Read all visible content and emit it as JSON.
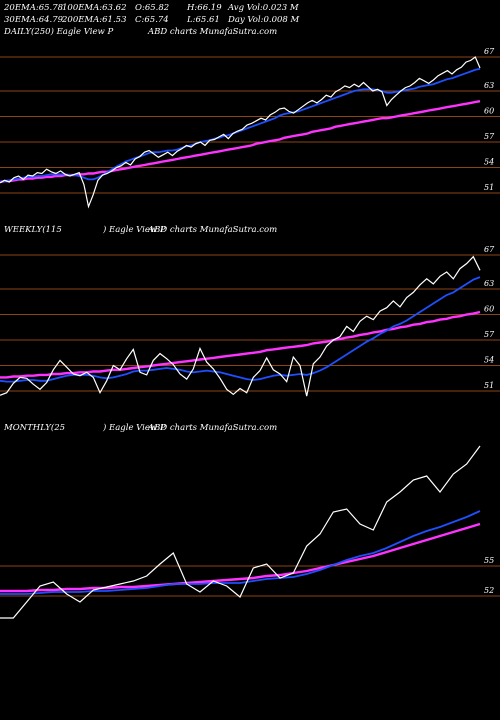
{
  "header": {
    "row1": [
      {
        "label": "20EMA:",
        "value": "65.78"
      },
      {
        "label": "100EMA:",
        "value": "63.62"
      },
      {
        "label": "O:",
        "value": "65.82"
      },
      {
        "label": "H:",
        "value": "66.19"
      },
      {
        "label": "Avg Vol:",
        "value": "0.023 M"
      }
    ],
    "row2": [
      {
        "label": "30EMA:",
        "value": "64.79"
      },
      {
        "label": "200EMA:",
        "value": "61.53"
      },
      {
        "label": "C:",
        "value": "65.74"
      },
      {
        "label": "L:",
        "value": "65.61"
      },
      {
        "label": "Day Vol:",
        "value": "0.008  M"
      }
    ]
  },
  "panels": [
    {
      "id": "daily",
      "title_left": "DAILY(250) Eagle   View  P",
      "title_right": "ABD charts MunafaSutra.com",
      "ticks": [
        "67",
        "63",
        "60",
        "57",
        "54",
        "51"
      ]
    },
    {
      "id": "weekly",
      "title_left": "WEEKLY(115",
      "title_mid": ") Eagle   View  P",
      "title_right": "ABD charts MunafaSutra.com",
      "ticks": [
        "67",
        "63",
        "60",
        "57",
        "54",
        "51"
      ]
    },
    {
      "id": "monthly",
      "title_left": "MONTHLY(25",
      "title_mid": ") Eagle   View  P",
      "title_right": "ABD charts MunafaSutra.com",
      "ticks": [
        "55",
        "52"
      ]
    }
  ],
  "colors": {
    "background": "#000000",
    "price": "#ffffff",
    "ema_fast": "#1e50ff",
    "ema_slow": "#ff33ff",
    "ema_mid": "#ffb070",
    "grid": "#8b4513"
  },
  "chart_data": [
    {
      "type": "line",
      "name": "daily",
      "ylim": [
        49,
        69
      ],
      "y_ticks": [
        67,
        63,
        60,
        57,
        54,
        51
      ],
      "series": [
        {
          "name": "price",
          "values": [
            52.2,
            52.5,
            52.3,
            52.8,
            53.0,
            52.6,
            53.1,
            53.0,
            53.4,
            53.3,
            53.8,
            53.5,
            53.3,
            53.6,
            53.2,
            53.0,
            53.2,
            53.4,
            52.0,
            49.4,
            50.8,
            52.5,
            53.1,
            53.3,
            53.6,
            54.0,
            54.2,
            54.6,
            54.3,
            55.0,
            55.3,
            55.8,
            56.0,
            55.6,
            55.2,
            55.5,
            55.8,
            55.4,
            55.9,
            56.2,
            56.6,
            56.4,
            56.8,
            57.0,
            56.6,
            57.2,
            57.3,
            57.6,
            57.9,
            57.4,
            58.0,
            58.3,
            58.5,
            59.0,
            59.2,
            59.5,
            59.8,
            59.6,
            60.2,
            60.5,
            60.9,
            61.0,
            60.6,
            60.4,
            60.8,
            61.2,
            61.6,
            61.9,
            61.6,
            62.0,
            62.5,
            62.3,
            62.9,
            63.2,
            63.6,
            63.4,
            63.8,
            63.5,
            64.0,
            63.5,
            63.0,
            63.2,
            62.9,
            61.3,
            62.0,
            62.5,
            63.0,
            63.4,
            63.6,
            64.0,
            64.5,
            64.2,
            63.9,
            64.3,
            64.8,
            65.1,
            65.4,
            65.0,
            65.5,
            65.8,
            66.4,
            66.6,
            67.0,
            65.7
          ]
        },
        {
          "name": "ema_fast",
          "values": [
            52.3,
            52.4,
            52.5,
            52.6,
            52.7,
            52.8,
            52.9,
            52.9,
            53.0,
            53.0,
            53.1,
            53.2,
            53.2,
            53.2,
            53.2,
            53.1,
            53.1,
            53.0,
            52.8,
            52.6,
            52.6,
            52.8,
            53.1,
            53.4,
            53.8,
            54.1,
            54.4,
            54.7,
            54.9,
            55.1,
            55.3,
            55.5,
            55.7,
            55.8,
            55.8,
            55.9,
            56.0,
            56.0,
            56.1,
            56.3,
            56.5,
            56.6,
            56.8,
            57.0,
            57.1,
            57.2,
            57.4,
            57.5,
            57.7,
            57.8,
            58.0,
            58.2,
            58.4,
            58.6,
            58.8,
            59.0,
            59.2,
            59.4,
            59.6,
            59.8,
            60.1,
            60.3,
            60.4,
            60.5,
            60.6,
            60.8,
            61.0,
            61.2,
            61.4,
            61.6,
            61.8,
            62.0,
            62.2,
            62.4,
            62.6,
            62.8,
            63.0,
            63.1,
            63.2,
            63.2,
            63.2,
            63.1,
            63.0,
            62.8,
            62.8,
            62.9,
            63.0,
            63.1,
            63.2,
            63.3,
            63.5,
            63.6,
            63.7,
            63.8,
            64.0,
            64.2,
            64.4,
            64.5,
            64.7,
            64.9,
            65.1,
            65.3,
            65.5,
            65.6
          ]
        },
        {
          "name": "ema_slow",
          "values": [
            52.3,
            52.4,
            52.4,
            52.5,
            52.6,
            52.6,
            52.7,
            52.7,
            52.8,
            52.8,
            52.9,
            52.9,
            53.0,
            53.0,
            53.1,
            53.1,
            53.1,
            53.2,
            53.2,
            53.3,
            53.3,
            53.4,
            53.5,
            53.5,
            53.6,
            53.7,
            53.8,
            53.9,
            54.0,
            54.1,
            54.2,
            54.3,
            54.4,
            54.5,
            54.6,
            54.7,
            54.8,
            54.9,
            55.0,
            55.1,
            55.2,
            55.3,
            55.4,
            55.5,
            55.6,
            55.7,
            55.8,
            55.9,
            56.0,
            56.1,
            56.2,
            56.3,
            56.4,
            56.5,
            56.6,
            56.8,
            56.9,
            57.0,
            57.1,
            57.2,
            57.3,
            57.5,
            57.6,
            57.7,
            57.8,
            57.9,
            58.0,
            58.2,
            58.3,
            58.4,
            58.5,
            58.6,
            58.8,
            58.9,
            59.0,
            59.1,
            59.2,
            59.3,
            59.4,
            59.5,
            59.6,
            59.7,
            59.8,
            59.8,
            59.9,
            60.0,
            60.1,
            60.2,
            60.3,
            60.4,
            60.5,
            60.6,
            60.7,
            60.8,
            60.9,
            61.0,
            61.1,
            61.2,
            61.3,
            61.4,
            61.5,
            61.6,
            61.7,
            61.8
          ]
        }
      ]
    },
    {
      "type": "line",
      "name": "weekly",
      "ylim": [
        49,
        69
      ],
      "y_ticks": [
        67,
        63,
        60,
        57,
        54,
        51
      ],
      "series": [
        {
          "name": "price",
          "values": [
            50.5,
            50.8,
            51.9,
            52.6,
            52.5,
            51.8,
            51.2,
            52.0,
            53.5,
            54.6,
            53.8,
            53.0,
            52.8,
            53.2,
            52.6,
            50.8,
            52.2,
            54.0,
            53.5,
            54.8,
            55.9,
            53.2,
            52.9,
            54.6,
            55.4,
            54.8,
            54.1,
            53.0,
            52.4,
            53.6,
            56.0,
            54.4,
            53.6,
            52.5,
            51.2,
            50.6,
            51.3,
            50.8,
            52.6,
            53.4,
            54.9,
            53.5,
            53.0,
            52.1,
            55.0,
            54.0,
            50.4,
            54.2,
            55.0,
            56.3,
            57.0,
            57.4,
            58.6,
            58.0,
            59.2,
            59.8,
            59.4,
            60.4,
            60.8,
            61.6,
            60.9,
            62.0,
            62.6,
            63.5,
            64.2,
            63.6,
            64.5,
            65.0,
            64.2,
            65.4,
            66.0,
            66.8,
            65.2
          ]
        },
        {
          "name": "ema_fast",
          "values": [
            52.2,
            52.1,
            52.1,
            52.2,
            52.3,
            52.3,
            52.2,
            52.2,
            52.4,
            52.6,
            52.8,
            52.9,
            52.9,
            52.9,
            52.8,
            52.6,
            52.5,
            52.6,
            52.8,
            53.0,
            53.3,
            53.4,
            53.4,
            53.5,
            53.6,
            53.7,
            53.6,
            53.5,
            53.3,
            53.2,
            53.3,
            53.4,
            53.3,
            53.2,
            53.0,
            52.8,
            52.6,
            52.4,
            52.3,
            52.4,
            52.6,
            52.8,
            52.9,
            52.8,
            52.9,
            53.0,
            52.9,
            53.1,
            53.4,
            53.8,
            54.3,
            54.8,
            55.3,
            55.8,
            56.3,
            56.8,
            57.2,
            57.7,
            58.1,
            58.6,
            58.9,
            59.3,
            59.8,
            60.3,
            60.8,
            61.3,
            61.8,
            62.3,
            62.6,
            63.1,
            63.6,
            64.1,
            64.4
          ]
        },
        {
          "name": "ema_slow",
          "values": [
            52.6,
            52.6,
            52.7,
            52.7,
            52.8,
            52.8,
            52.9,
            52.9,
            53.0,
            53.0,
            53.1,
            53.1,
            53.2,
            53.2,
            53.3,
            53.3,
            53.4,
            53.5,
            53.5,
            53.6,
            53.7,
            53.8,
            53.9,
            54.0,
            54.1,
            54.2,
            54.3,
            54.4,
            54.5,
            54.6,
            54.7,
            54.8,
            54.9,
            55.0,
            55.1,
            55.2,
            55.3,
            55.4,
            55.5,
            55.6,
            55.8,
            55.9,
            56.0,
            56.1,
            56.2,
            56.3,
            56.4,
            56.6,
            56.7,
            56.8,
            57.0,
            57.1,
            57.3,
            57.4,
            57.6,
            57.7,
            57.9,
            58.0,
            58.2,
            58.3,
            58.5,
            58.6,
            58.8,
            58.9,
            59.1,
            59.2,
            59.4,
            59.5,
            59.7,
            59.8,
            60.0,
            60.1,
            60.3
          ]
        }
      ]
    },
    {
      "type": "line",
      "name": "monthly",
      "ylim": [
        50,
        68
      ],
      "y_ticks": [
        55,
        52
      ],
      "series": [
        {
          "name": "price",
          "values": [
            49.8,
            49.8,
            51.4,
            53.0,
            53.4,
            52.2,
            51.4,
            52.6,
            52.9,
            53.2,
            53.5,
            54.0,
            55.2,
            56.3,
            53.2,
            52.4,
            53.5,
            53.0,
            51.9,
            54.8,
            55.2,
            53.8,
            54.3,
            57.0,
            58.2,
            60.4,
            60.7,
            59.2,
            58.6,
            61.4,
            62.4,
            63.6,
            64.0,
            62.4,
            64.2,
            65.2,
            67.0
          ]
        },
        {
          "name": "ema_fast",
          "values": [
            52.2,
            52.2,
            52.2,
            52.3,
            52.4,
            52.4,
            52.4,
            52.5,
            52.5,
            52.6,
            52.7,
            52.8,
            53.0,
            53.2,
            53.2,
            53.2,
            53.3,
            53.3,
            53.3,
            53.5,
            53.7,
            53.8,
            53.9,
            54.2,
            54.6,
            55.1,
            55.6,
            56.0,
            56.3,
            56.8,
            57.4,
            58.0,
            58.5,
            58.9,
            59.4,
            59.9,
            60.5
          ]
        },
        {
          "name": "ema_slow",
          "values": [
            52.5,
            52.5,
            52.5,
            52.6,
            52.6,
            52.7,
            52.7,
            52.8,
            52.8,
            52.9,
            52.9,
            53.0,
            53.1,
            53.2,
            53.3,
            53.4,
            53.5,
            53.6,
            53.7,
            53.8,
            54.0,
            54.1,
            54.3,
            54.5,
            54.8,
            55.1,
            55.4,
            55.7,
            56.0,
            56.4,
            56.8,
            57.2,
            57.6,
            58.0,
            58.4,
            58.8,
            59.2
          ]
        }
      ]
    }
  ]
}
